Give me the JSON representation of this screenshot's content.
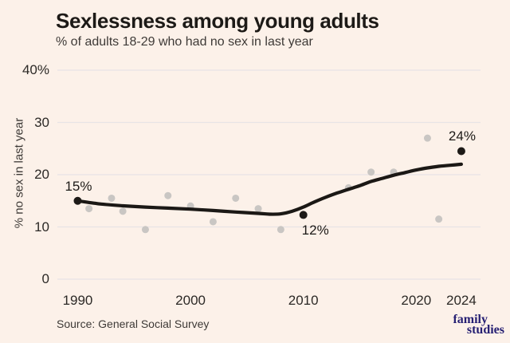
{
  "header": {
    "title": "Sexlessness among young adults",
    "subtitle": "% of adults 18-29 who had no sex in last year"
  },
  "footer": {
    "source": "Source: General Social Survey",
    "logo": {
      "line1": "family",
      "line2": "studies"
    }
  },
  "colors": {
    "background": "#fcf1e9",
    "ink": "#1d1a17",
    "muted_text": "#3e3a37",
    "gridline": "#e7e4e6",
    "gray_dot": "#c9c6c3",
    "trend_line": "#1b1815",
    "logo_navy": "#262073"
  },
  "chart_data": {
    "type": "scatter",
    "title": "Sexlessness among young adults",
    "subtitle": "% of adults 18-29 who had no sex in last year",
    "xlabel": "",
    "ylabel": "% no sex in last year",
    "x_range": [
      1988.2,
      2025.7
    ],
    "y_range": [
      0,
      40
    ],
    "grid": "horizontal",
    "legend": "none",
    "y_ticks": [
      {
        "value": 40,
        "label": "40%"
      },
      {
        "value": 30,
        "label": "30"
      },
      {
        "value": 20,
        "label": "20"
      },
      {
        "value": 10,
        "label": "10"
      },
      {
        "value": 0,
        "label": "0"
      }
    ],
    "x_ticks": [
      {
        "value": 1990,
        "label": "1990"
      },
      {
        "value": 2000,
        "label": "2000"
      },
      {
        "value": 2010,
        "label": "2010"
      },
      {
        "value": 2020,
        "label": "2020"
      },
      {
        "value": 2024,
        "label": "2024"
      }
    ],
    "survey_points": [
      {
        "year": 1991,
        "value": 13.5
      },
      {
        "year": 1993,
        "value": 15.5
      },
      {
        "year": 1994,
        "value": 13
      },
      {
        "year": 1996,
        "value": 9.5
      },
      {
        "year": 1998,
        "value": 16
      },
      {
        "year": 2000,
        "value": 14
      },
      {
        "year": 2002,
        "value": 11
      },
      {
        "year": 2004,
        "value": 15.5
      },
      {
        "year": 2006,
        "value": 13.5
      },
      {
        "year": 2008,
        "value": 9.5
      },
      {
        "year": 2014,
        "value": 17.5
      },
      {
        "year": 2016,
        "value": 20.5
      },
      {
        "year": 2018,
        "value": 20.5
      },
      {
        "year": 2021,
        "value": 27
      },
      {
        "year": 2022,
        "value": 11.5
      }
    ],
    "highlight_points": [
      {
        "year": 1990,
        "value": 15,
        "label": "15%",
        "label_offset": [
          1,
          -18
        ]
      },
      {
        "year": 2010,
        "value": 12.3,
        "label": "12%",
        "label_offset": [
          15,
          20
        ]
      },
      {
        "year": 2024,
        "value": 24.5,
        "label": "24%",
        "label_offset": [
          1,
          -19
        ]
      }
    ],
    "trend_line": [
      [
        1990,
        15.0
      ],
      [
        1992,
        14.4
      ],
      [
        1994,
        14.05
      ],
      [
        1996,
        13.8
      ],
      [
        1998,
        13.6
      ],
      [
        2000,
        13.4
      ],
      [
        2002,
        13.15
      ],
      [
        2004,
        12.85
      ],
      [
        2006,
        12.6
      ],
      [
        2007,
        12.45
      ],
      [
        2008,
        12.5
      ],
      [
        2009,
        13.0
      ],
      [
        2010,
        13.8
      ],
      [
        2011,
        14.8
      ],
      [
        2012,
        15.7
      ],
      [
        2013,
        16.5
      ],
      [
        2014,
        17.2
      ],
      [
        2015,
        17.9
      ],
      [
        2016,
        18.7
      ],
      [
        2017,
        19.3
      ],
      [
        2018,
        19.9
      ],
      [
        2019,
        20.4
      ],
      [
        2020,
        20.9
      ],
      [
        2021,
        21.3
      ],
      [
        2022,
        21.6
      ],
      [
        2023,
        21.8
      ],
      [
        2024,
        22.0
      ]
    ]
  }
}
